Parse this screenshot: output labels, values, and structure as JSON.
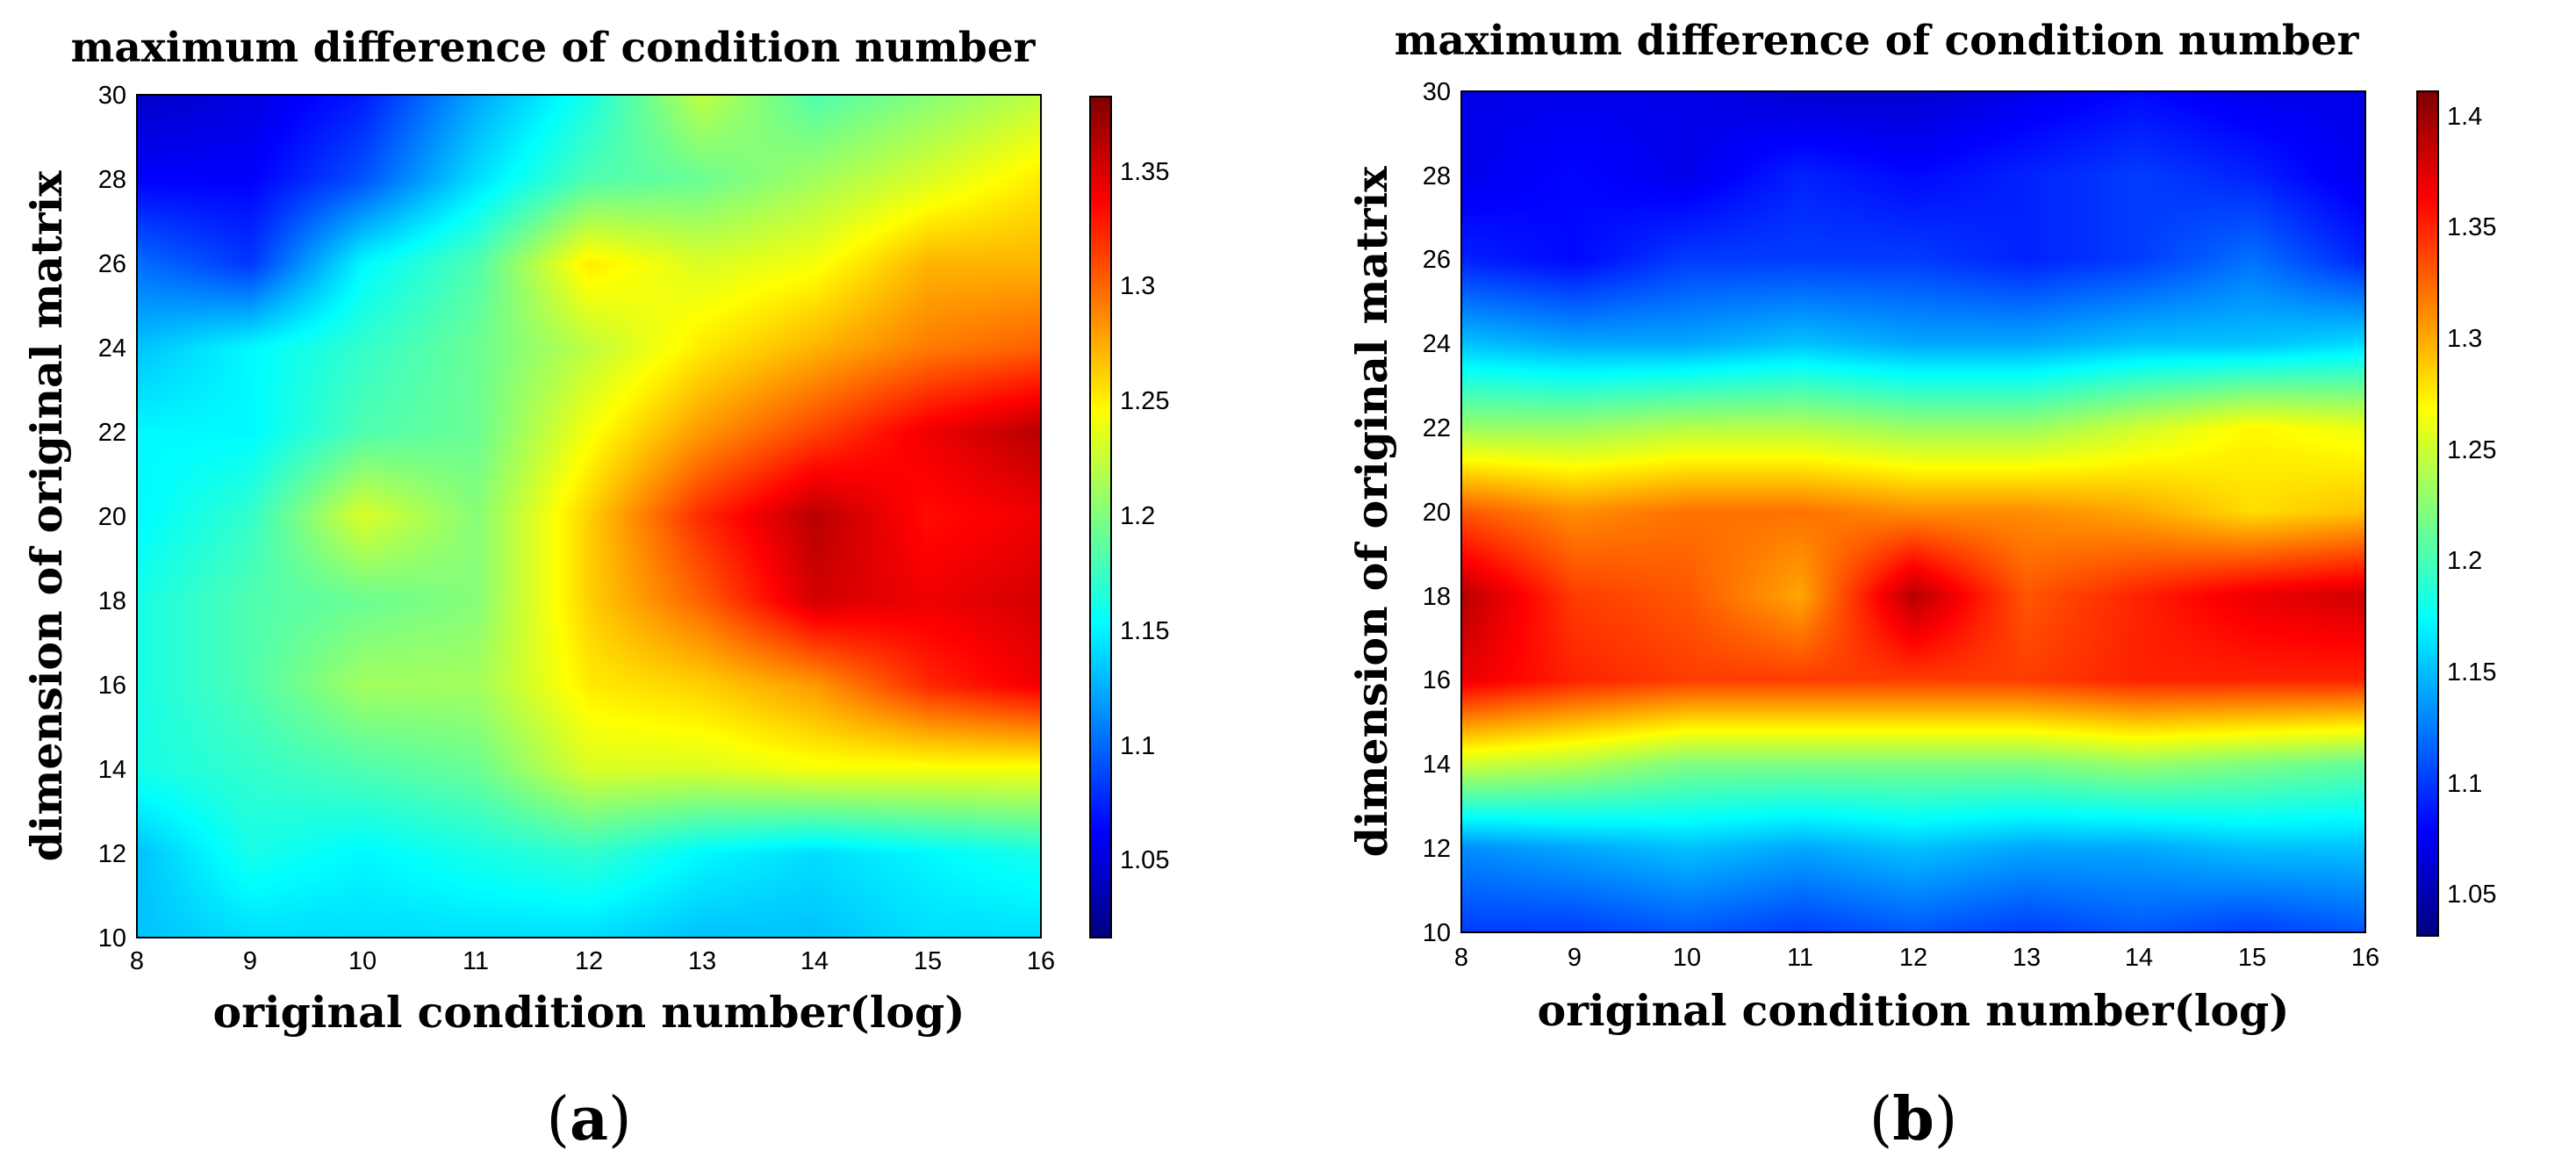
{
  "chart_data": [
    {
      "type": "heatmap",
      "title": "maximum difference of condition number",
      "xlabel": "original condition number(log)",
      "ylabel": "dimension of original matrix",
      "xlim": [
        8,
        16
      ],
      "ylim": [
        10,
        30
      ],
      "x_ticks": [
        "8",
        "9",
        "10",
        "11",
        "12",
        "13",
        "14",
        "15",
        "16"
      ],
      "y_ticks": [
        "10",
        "12",
        "14",
        "16",
        "18",
        "20",
        "22",
        "24",
        "26",
        "28",
        "30"
      ],
      "colorbar": {
        "range": [
          1.015,
          1.38
        ],
        "ticks": [
          "1.05",
          "1.1",
          "1.15",
          "1.2",
          "1.25",
          "1.3",
          "1.35"
        ],
        "colormap": "jet"
      },
      "panel_label": "a",
      "x": [
        8,
        9,
        10,
        11,
        12,
        13,
        14,
        15,
        16
      ],
      "y": [
        10,
        12,
        14,
        16,
        18,
        20,
        22,
        24,
        26,
        28,
        30
      ],
      "z": [
        [
          1.13,
          1.14,
          1.14,
          1.14,
          1.14,
          1.13,
          1.13,
          1.14,
          1.14
        ],
        [
          1.13,
          1.16,
          1.15,
          1.16,
          1.17,
          1.15,
          1.14,
          1.15,
          1.16
        ],
        [
          1.16,
          1.17,
          1.18,
          1.19,
          1.23,
          1.23,
          1.24,
          1.24,
          1.24
        ],
        [
          1.16,
          1.18,
          1.21,
          1.21,
          1.25,
          1.26,
          1.28,
          1.32,
          1.34
        ],
        [
          1.16,
          1.18,
          1.19,
          1.2,
          1.26,
          1.3,
          1.35,
          1.34,
          1.35
        ],
        [
          1.15,
          1.17,
          1.23,
          1.2,
          1.26,
          1.32,
          1.36,
          1.33,
          1.34
        ],
        [
          1.15,
          1.15,
          1.18,
          1.19,
          1.24,
          1.28,
          1.31,
          1.34,
          1.36
        ],
        [
          1.13,
          1.15,
          1.17,
          1.19,
          1.22,
          1.25,
          1.27,
          1.29,
          1.3
        ],
        [
          1.1,
          1.08,
          1.15,
          1.18,
          1.25,
          1.23,
          1.24,
          1.27,
          1.27
        ],
        [
          1.06,
          1.06,
          1.09,
          1.14,
          1.18,
          1.19,
          1.21,
          1.23,
          1.25
        ],
        [
          1.04,
          1.05,
          1.07,
          1.12,
          1.16,
          1.22,
          1.18,
          1.2,
          1.22
        ]
      ]
    },
    {
      "type": "heatmap",
      "title": "maximum difference of condition number",
      "xlabel": "original condition number(log)",
      "ylabel": "dimension of original matrix",
      "xlim": [
        8,
        16
      ],
      "ylim": [
        10,
        30
      ],
      "x_ticks": [
        "8",
        "9",
        "10",
        "11",
        "12",
        "13",
        "14",
        "15",
        "16"
      ],
      "y_ticks": [
        "10",
        "12",
        "14",
        "16",
        "18",
        "20",
        "22",
        "24",
        "26",
        "28",
        "30"
      ],
      "colorbar": {
        "range": [
          1.03,
          1.41
        ],
        "ticks": [
          "1.05",
          "1.1",
          "1.15",
          "1.2",
          "1.25",
          "1.3",
          "1.35",
          "1.4"
        ],
        "colormap": "jet"
      },
      "panel_label": "b",
      "x": [
        8,
        9,
        10,
        11,
        12,
        13,
        14,
        15,
        16
      ],
      "y": [
        10,
        12,
        14,
        16,
        18,
        20,
        22,
        24,
        26,
        28,
        30
      ],
      "z": [
        [
          1.1,
          1.1,
          1.11,
          1.1,
          1.11,
          1.1,
          1.11,
          1.1,
          1.11
        ],
        [
          1.13,
          1.14,
          1.15,
          1.14,
          1.15,
          1.14,
          1.14,
          1.15,
          1.15
        ],
        [
          1.25,
          1.24,
          1.22,
          1.22,
          1.22,
          1.22,
          1.23,
          1.22,
          1.21
        ],
        [
          1.37,
          1.35,
          1.34,
          1.34,
          1.34,
          1.34,
          1.35,
          1.35,
          1.35
        ],
        [
          1.39,
          1.34,
          1.33,
          1.3,
          1.39,
          1.33,
          1.35,
          1.37,
          1.38
        ],
        [
          1.33,
          1.31,
          1.32,
          1.32,
          1.31,
          1.31,
          1.3,
          1.28,
          1.29
        ],
        [
          1.23,
          1.23,
          1.24,
          1.24,
          1.23,
          1.23,
          1.25,
          1.27,
          1.26
        ],
        [
          1.15,
          1.14,
          1.14,
          1.15,
          1.14,
          1.14,
          1.15,
          1.15,
          1.16
        ],
        [
          1.09,
          1.08,
          1.1,
          1.1,
          1.1,
          1.09,
          1.1,
          1.12,
          1.09
        ],
        [
          1.07,
          1.08,
          1.07,
          1.09,
          1.08,
          1.09,
          1.1,
          1.09,
          1.07
        ],
        [
          1.07,
          1.07,
          1.07,
          1.06,
          1.06,
          1.07,
          1.08,
          1.07,
          1.07
        ]
      ]
    }
  ]
}
